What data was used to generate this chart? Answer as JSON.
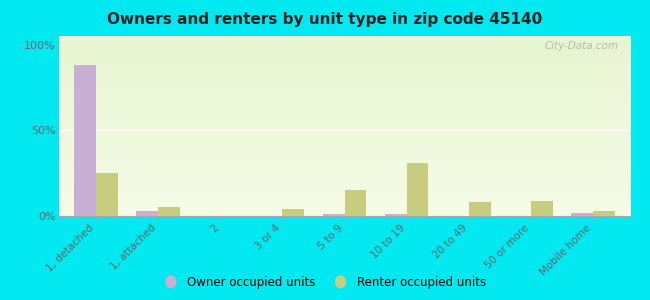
{
  "title": "Owners and renters by unit type in zip code 45140",
  "categories": [
    "1, detached",
    "1, attached",
    "2",
    "3 or 4",
    "5 to 9",
    "10 to 19",
    "20 to 49",
    "50 or more",
    "Mobile home"
  ],
  "owner_values": [
    88,
    3,
    0,
    0,
    1,
    1,
    0,
    0,
    2
  ],
  "renter_values": [
    25,
    5,
    0,
    4,
    15,
    31,
    8,
    9,
    3
  ],
  "owner_color": "#c9afd4",
  "renter_color": "#c8cc7e",
  "bg_color_top": "#e8f5d0",
  "bg_color_bottom": "#f5fce8",
  "outer_bg": "#00e8f0",
  "ylabel_ticks": [
    "0%",
    "50%",
    "100%"
  ],
  "ytick_vals": [
    0,
    50,
    100
  ],
  "ylim": [
    0,
    105
  ],
  "legend_owner": "Owner occupied units",
  "legend_renter": "Renter occupied units",
  "watermark": "City-Data.com",
  "bar_width": 0.35
}
